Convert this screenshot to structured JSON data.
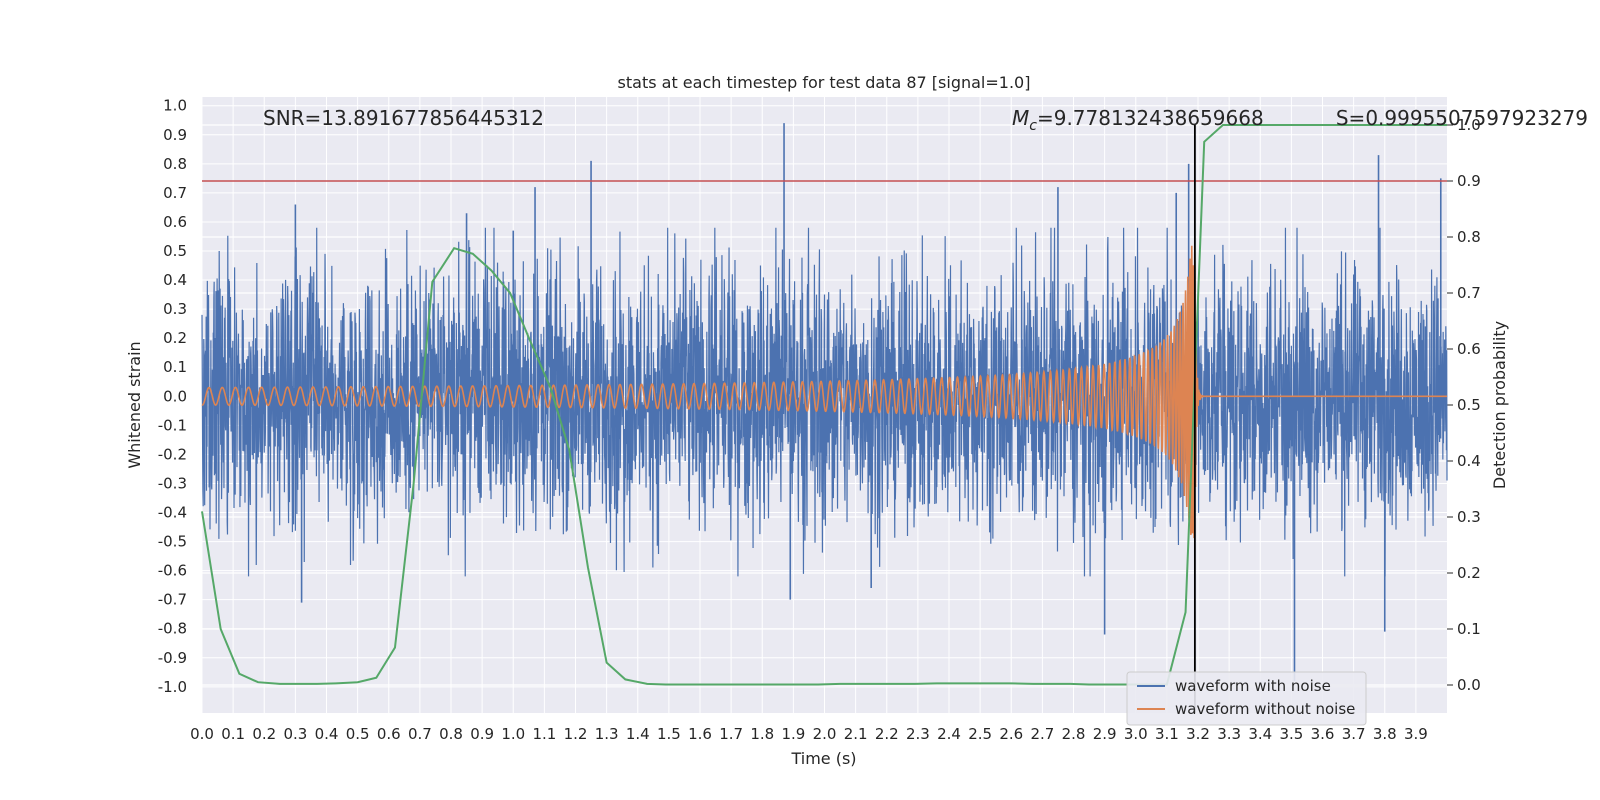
{
  "chart_data": {
    "type": "line",
    "title": "stats at each timestep for test data 87 [signal=1.0]",
    "xlabel": "Time (s)",
    "ylabel": "Whitened strain",
    "ylabel_right": "Detection probability",
    "xlim": [
      0.0,
      4.0
    ],
    "ylim": [
      -1.09,
      1.03
    ],
    "ylim_right": [
      -0.05,
      1.05
    ],
    "xticks": [
      "0.0",
      "0.1",
      "0.2",
      "0.3",
      "0.4",
      "0.5",
      "0.6",
      "0.7",
      "0.8",
      "0.9",
      "1.0",
      "1.1",
      "1.2",
      "1.3",
      "1.4",
      "1.5",
      "1.6",
      "1.7",
      "1.8",
      "1.9",
      "2.0",
      "2.1",
      "2.2",
      "2.3",
      "2.4",
      "2.5",
      "2.6",
      "2.7",
      "2.8",
      "2.9",
      "3.0",
      "3.1",
      "3.2",
      "3.3",
      "3.4",
      "3.5",
      "3.6",
      "3.7",
      "3.8",
      "3.9"
    ],
    "yticks": [
      "1.0",
      "0.9",
      "0.8",
      "0.7",
      "0.6",
      "0.5",
      "0.4",
      "0.3",
      "0.2",
      "0.1",
      "0.0",
      "-0.1",
      "-0.2",
      "-0.3",
      "-0.4",
      "-0.5",
      "-0.6",
      "-0.7",
      "-0.8",
      "-0.9",
      "-1.0"
    ],
    "yticks_right": [
      "1.0",
      "0.9",
      "0.8",
      "0.7",
      "0.6",
      "0.5",
      "0.4",
      "0.3",
      "0.2",
      "0.1",
      "0.0"
    ],
    "annotations": {
      "snr": "SNR=13.891677856445312",
      "mc_symbol": "M",
      "mc_sub": "c",
      "mc_value": "=9.778132438659668",
      "s": "S=0.9995507597923279"
    },
    "threshold": 0.9,
    "merger_time": 3.19,
    "series": [
      {
        "name": "waveform with noise",
        "color": "#4c72b0",
        "kind": "noise",
        "amplitude": 0.28,
        "extremes": [
          [
            0.3,
            0.66
          ],
          [
            0.32,
            -0.71
          ],
          [
            0.85,
            0.63
          ],
          [
            1.0,
            0.57
          ],
          [
            1.07,
            0.72
          ],
          [
            1.25,
            0.81
          ],
          [
            1.87,
            0.94
          ],
          [
            1.89,
            -0.7
          ],
          [
            2.15,
            -0.66
          ],
          [
            2.75,
            0.72
          ],
          [
            2.9,
            -0.82
          ],
          [
            3.13,
            0.7
          ],
          [
            3.17,
            0.8
          ],
          [
            3.51,
            -0.98
          ],
          [
            3.78,
            0.83
          ],
          [
            3.8,
            -0.81
          ],
          [
            3.98,
            0.75
          ]
        ]
      },
      {
        "name": "waveform without noise",
        "color": "#dd8452",
        "kind": "chirp",
        "base_amplitude": 0.03,
        "peak_amplitude": 0.52
      },
      {
        "name": "detection probability",
        "color": "#55a868",
        "axis": "right",
        "x": [
          0.0,
          0.06,
          0.12,
          0.18,
          0.25,
          0.31,
          0.37,
          0.43,
          0.5,
          0.56,
          0.62,
          0.68,
          0.74,
          0.81,
          0.87,
          0.93,
          0.99,
          1.05,
          1.12,
          1.18,
          1.24,
          1.3,
          1.36,
          1.43,
          1.49,
          1.55,
          1.61,
          1.67,
          1.74,
          1.8,
          1.86,
          1.92,
          1.98,
          2.05,
          2.11,
          2.17,
          2.23,
          2.29,
          2.36,
          2.42,
          2.48,
          2.54,
          2.6,
          2.67,
          2.73,
          2.79,
          2.85,
          2.91,
          2.98,
          3.04,
          3.1,
          3.16,
          3.22,
          3.28,
          3.34,
          3.4,
          3.47,
          3.53,
          3.59,
          3.65,
          3.71,
          3.78,
          3.84,
          3.9,
          3.96,
          4.0
        ],
        "y": [
          0.31,
          0.1,
          0.02,
          0.005,
          0.002,
          0.002,
          0.002,
          0.003,
          0.005,
          0.013,
          0.067,
          0.36,
          0.72,
          0.78,
          0.77,
          0.74,
          0.7,
          0.62,
          0.53,
          0.42,
          0.21,
          0.04,
          0.01,
          0.002,
          0.001,
          0.001,
          0.001,
          0.001,
          0.001,
          0.001,
          0.001,
          0.001,
          0.001,
          0.002,
          0.002,
          0.002,
          0.002,
          0.002,
          0.003,
          0.003,
          0.003,
          0.003,
          0.003,
          0.002,
          0.002,
          0.002,
          0.001,
          0.001,
          0.001,
          0.001,
          0.001,
          0.13,
          0.97,
          1.0,
          1.0,
          1.0,
          1.0,
          1.0,
          1.0,
          1.0,
          1.0,
          1.0,
          1.0,
          1.0,
          1.0,
          1.0
        ]
      }
    ],
    "legend": {
      "position": "lower-right",
      "entries": [
        "waveform with noise",
        "waveform without noise"
      ]
    },
    "grid": true,
    "colors": {
      "background": "#eaeaf2",
      "grid": "#ffffff",
      "threshold": "#c44e52",
      "merger": "#000000"
    }
  }
}
